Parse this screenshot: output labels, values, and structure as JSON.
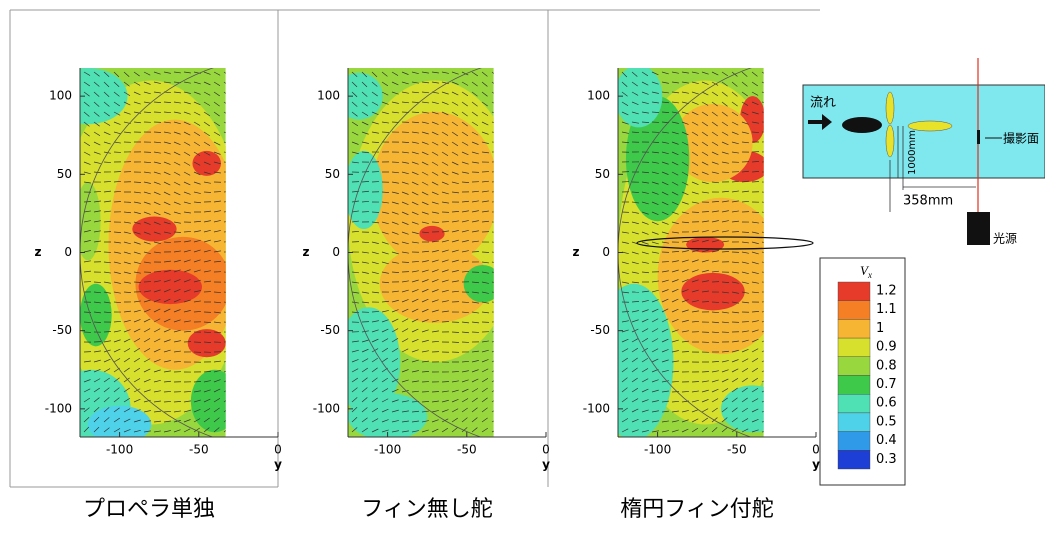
{
  "chart_data": [
    {
      "type": "contour",
      "title": "プロペラ単独",
      "xlabel": "y",
      "ylabel": "z",
      "xlim": [
        -125,
        0
      ],
      "ylim": [
        -118,
        118
      ],
      "xticks": [
        -100,
        -50,
        0
      ],
      "yticks": [
        -100,
        -50,
        0,
        50,
        100
      ]
    },
    {
      "type": "contour",
      "title": "フィン無し舵",
      "xlabel": "y",
      "ylabel": "z",
      "xlim": [
        -125,
        0
      ],
      "ylim": [
        -118,
        118
      ],
      "xticks": [
        -100,
        -50,
        0
      ],
      "yticks": [
        -100,
        -50,
        0,
        50,
        100
      ]
    },
    {
      "type": "contour",
      "title": "楕円フィン付舵",
      "xlabel": "y",
      "ylabel": "z",
      "xlim": [
        -125,
        0
      ],
      "ylim": [
        -118,
        118
      ],
      "xticks": [
        -100,
        -50,
        0
      ],
      "yticks": [
        -100,
        -50,
        0,
        50,
        100
      ]
    }
  ],
  "colorbar": {
    "title": "V",
    "title_subscript": "x",
    "levels": [
      1.2,
      1.1,
      1,
      0.9,
      0.8,
      0.7,
      0.6,
      0.5,
      0.4,
      0.3
    ],
    "colors": [
      "#e63b2a",
      "#f47f24",
      "#f7b534",
      "#d7e02c",
      "#98d83e",
      "#3fc94a",
      "#4fe0b4",
      "#4ed2ea",
      "#2f9be8",
      "#1d3fd6"
    ]
  },
  "diagram": {
    "flow_label": "流れ",
    "height_label": "1000mm",
    "plane_label": "撮影面",
    "distance_label": "358mm",
    "light_label": "光源"
  }
}
